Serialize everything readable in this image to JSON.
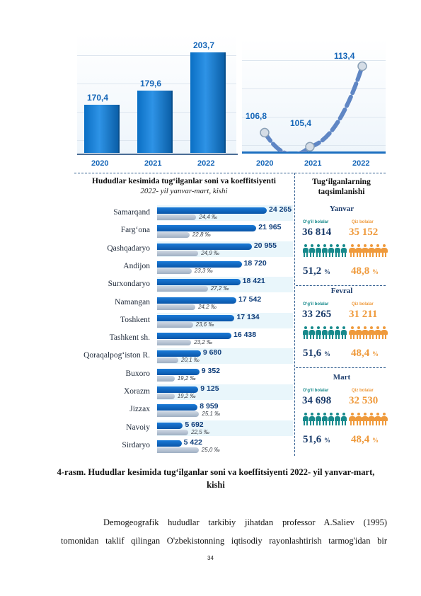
{
  "top_bar_chart": {
    "type": "bar",
    "categories": [
      "2020",
      "2021",
      "2022"
    ],
    "values": [
      170.4,
      179.6,
      203.7
    ],
    "value_labels": [
      "170,4",
      "179,6",
      "203,7"
    ]
  },
  "top_line_chart": {
    "type": "line",
    "categories": [
      "2020",
      "2021",
      "2022"
    ],
    "values": [
      106.8,
      105.4,
      113.4
    ],
    "value_labels": [
      "106,8",
      "105,4",
      "113,4"
    ]
  },
  "left_title": "Hududlar kesimida tug‘ilganlar soni va koeffitsiyenti",
  "left_subtitle": "2022- yil yanvar-mart, kishi",
  "right_title": "Tug‘ilganlarning taqsimlanishi",
  "regions": [
    {
      "name": "Samarqand",
      "value": 24265,
      "value_label": "24 265",
      "coef": 24.4,
      "coef_label": "24,4 ‰"
    },
    {
      "name": "Farg‘ona",
      "value": 21965,
      "value_label": "21 965",
      "coef": 22.8,
      "coef_label": "22,8 ‰"
    },
    {
      "name": "Qashqadaryo",
      "value": 20955,
      "value_label": "20 955",
      "coef": 24.9,
      "coef_label": "24,9 ‰"
    },
    {
      "name": "Andijon",
      "value": 18720,
      "value_label": "18 720",
      "coef": 23.3,
      "coef_label": "23,3 ‰"
    },
    {
      "name": "Surxondaryo",
      "value": 18421,
      "value_label": "18 421",
      "coef": 27.2,
      "coef_label": "27,2 ‰"
    },
    {
      "name": "Namangan",
      "value": 17542,
      "value_label": "17 542",
      "coef": 24.2,
      "coef_label": "24,2 ‰"
    },
    {
      "name": "Toshkent",
      "value": 17134,
      "value_label": "17 134",
      "coef": 23.6,
      "coef_label": "23,6 ‰"
    },
    {
      "name": "Tashkent sh.",
      "value": 16438,
      "value_label": "16 438",
      "coef": 23.2,
      "coef_label": "23,2 ‰"
    },
    {
      "name": "Qoraqalpog‘iston R.",
      "value": 9680,
      "value_label": "9 680",
      "coef": 20.1,
      "coef_label": "20,1 ‰"
    },
    {
      "name": "Buxoro",
      "value": 9352,
      "value_label": "9 352",
      "coef": 19.2,
      "coef_label": "19,2 ‰"
    },
    {
      "name": "Xorazm",
      "value": 9125,
      "value_label": "9 125",
      "coef": 19.2,
      "coef_label": "19,2 ‰"
    },
    {
      "name": "Jizzax",
      "value": 8959,
      "value_label": "8 959",
      "coef": 25.1,
      "coef_label": "25,1 ‰"
    },
    {
      "name": "Navoiy",
      "value": 5692,
      "value_label": "5 692",
      "coef": 22.5,
      "coef_label": "22,5 ‰"
    },
    {
      "name": "Sirdaryo",
      "value": 5422,
      "value_label": "5 422",
      "coef": 25.0,
      "coef_label": "25,0 ‰"
    }
  ],
  "months": [
    {
      "name": "Yanvar",
      "boys_label": "O‘g‘il bolalar",
      "girls_label": "Qiz bolalar",
      "boys": "36 814",
      "girls": "35 152",
      "boys_pct": "51,2",
      "girls_pct": "48,8",
      "pct_sign": "%"
    },
    {
      "name": "Fevral",
      "boys_label": "O‘g‘il bolalar",
      "girls_label": "Qiz bolalar",
      "boys": "33 265",
      "girls": "31 211",
      "boys_pct": "51,6",
      "girls_pct": "48,4",
      "pct_sign": "%"
    },
    {
      "name": "Mart",
      "boys_label": "O‘g‘il bolalar",
      "girls_label": "Qiz bolalar",
      "boys": "34 698",
      "girls": "32 530",
      "boys_pct": "51,6",
      "girls_pct": "48,4",
      "pct_sign": "%"
    }
  ],
  "caption": "4-rasm. Hududlar kesimida tug‘ilganlar soni va koeffitsiyenti 2022- yil yanvar-mart, kishi",
  "paragraph_line1": "Demogeografik hududlar tarkibiy jihatdan professor A.Saliev (1995)",
  "paragraph_line2": "tomonidan taklif qilingan O'zbekistonning iqtisodiy rayonlashtirish tarmog'idan bir",
  "page_number": "34",
  "colors": {
    "boy": "#178a8c",
    "girl": "#ef9a3c",
    "bar_blue": "#0a6fc4"
  }
}
